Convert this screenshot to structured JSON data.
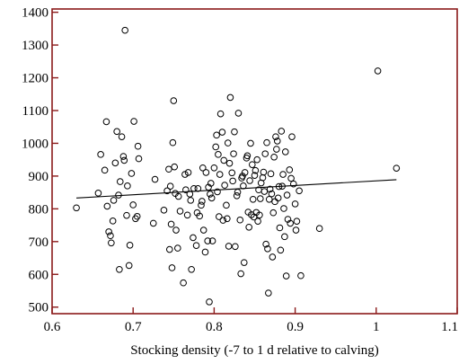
{
  "chart_data": {
    "type": "scatter",
    "title": "",
    "xlabel": "Stocking density (-7 to 1 d relative to calving)",
    "ylabel": "",
    "xlim": [
      0.6,
      1.1
    ],
    "ylim": [
      480,
      1410
    ],
    "xticks": [
      0.6,
      0.7,
      0.8,
      0.9,
      1.0,
      1.1
    ],
    "xtick_labels": [
      "0.6",
      "0.7",
      "0.8",
      "0.9",
      "1",
      "1.1"
    ],
    "yticks": [
      500,
      600,
      700,
      800,
      900,
      1000,
      1100,
      1200,
      1300,
      1400
    ],
    "ytick_labels": [
      "500",
      "600",
      "700",
      "800",
      "900",
      "1000",
      "1100",
      "1200",
      "1300",
      "1400"
    ],
    "grid": false,
    "frame_color": "#8b1a1a",
    "point_color": "#000000",
    "trend_line": {
      "x": [
        0.63,
        1.025
      ],
      "y": [
        833,
        889
      ]
    },
    "points": [
      [
        0.63,
        803
      ],
      [
        0.657,
        848
      ],
      [
        0.66,
        966
      ],
      [
        0.665,
        918
      ],
      [
        0.667,
        1066
      ],
      [
        0.668,
        808
      ],
      [
        0.67,
        730
      ],
      [
        0.672,
        718
      ],
      [
        0.673,
        696
      ],
      [
        0.675,
        763
      ],
      [
        0.676,
        826
      ],
      [
        0.678,
        940
      ],
      [
        0.68,
        1036
      ],
      [
        0.682,
        842
      ],
      [
        0.683,
        615
      ],
      [
        0.684,
        883
      ],
      [
        0.686,
        1020
      ],
      [
        0.688,
        960
      ],
      [
        0.689,
        948
      ],
      [
        0.69,
        1345
      ],
      [
        0.692,
        780
      ],
      [
        0.693,
        870
      ],
      [
        0.695,
        627
      ],
      [
        0.696,
        689
      ],
      [
        0.698,
        908
      ],
      [
        0.7,
        812
      ],
      [
        0.701,
        1067
      ],
      [
        0.703,
        770
      ],
      [
        0.705,
        777
      ],
      [
        0.706,
        991
      ],
      [
        0.707,
        953
      ],
      [
        0.725,
        756
      ],
      [
        0.727,
        890
      ],
      [
        0.738,
        796
      ],
      [
        0.742,
        855
      ],
      [
        0.744,
        921
      ],
      [
        0.745,
        676
      ],
      [
        0.746,
        869
      ],
      [
        0.747,
        753
      ],
      [
        0.748,
        620
      ],
      [
        0.749,
        1002
      ],
      [
        0.75,
        1130
      ],
      [
        0.751,
        928
      ],
      [
        0.752,
        847
      ],
      [
        0.753,
        735
      ],
      [
        0.755,
        680
      ],
      [
        0.756,
        838
      ],
      [
        0.758,
        793
      ],
      [
        0.762,
        574
      ],
      [
        0.764,
        905
      ],
      [
        0.765,
        858
      ],
      [
        0.767,
        781
      ],
      [
        0.768,
        911
      ],
      [
        0.77,
        845
      ],
      [
        0.771,
        826
      ],
      [
        0.772,
        615
      ],
      [
        0.774,
        712
      ],
      [
        0.775,
        862
      ],
      [
        0.778,
        688
      ],
      [
        0.779,
        788
      ],
      [
        0.78,
        862
      ],
      [
        0.782,
        778
      ],
      [
        0.784,
        811
      ],
      [
        0.785,
        823
      ],
      [
        0.786,
        925
      ],
      [
        0.787,
        735
      ],
      [
        0.789,
        668
      ],
      [
        0.79,
        911
      ],
      [
        0.792,
        702
      ],
      [
        0.793,
        866
      ],
      [
        0.794,
        516
      ],
      [
        0.795,
        845
      ],
      [
        0.796,
        878
      ],
      [
        0.797,
        833
      ],
      [
        0.798,
        702
      ],
      [
        0.8,
        925
      ],
      [
        0.802,
        989
      ],
      [
        0.803,
        1025
      ],
      [
        0.804,
        852
      ],
      [
        0.805,
        966
      ],
      [
        0.806,
        776
      ],
      [
        0.807,
        905
      ],
      [
        0.808,
        1090
      ],
      [
        0.81,
        1034
      ],
      [
        0.811,
        765
      ],
      [
        0.812,
        948
      ],
      [
        0.813,
        872
      ],
      [
        0.815,
        811
      ],
      [
        0.816,
        770
      ],
      [
        0.817,
        1001
      ],
      [
        0.818,
        686
      ],
      [
        0.819,
        939
      ],
      [
        0.82,
        1140
      ],
      [
        0.822,
        910
      ],
      [
        0.823,
        885
      ],
      [
        0.824,
        968
      ],
      [
        0.825,
        1035
      ],
      [
        0.826,
        685
      ],
      [
        0.828,
        840
      ],
      [
        0.829,
        851
      ],
      [
        0.83,
        1092
      ],
      [
        0.832,
        766
      ],
      [
        0.833,
        602
      ],
      [
        0.834,
        894
      ],
      [
        0.835,
        900
      ],
      [
        0.836,
        870
      ],
      [
        0.837,
        636
      ],
      [
        0.838,
        911
      ],
      [
        0.84,
        955
      ],
      [
        0.841,
        962
      ],
      [
        0.842,
        790
      ],
      [
        0.843,
        744
      ],
      [
        0.844,
        886
      ],
      [
        0.845,
        1000
      ],
      [
        0.846,
        782
      ],
      [
        0.847,
        935
      ],
      [
        0.848,
        829
      ],
      [
        0.849,
        775
      ],
      [
        0.85,
        902
      ],
      [
        0.851,
        917
      ],
      [
        0.852,
        789
      ],
      [
        0.853,
        950
      ],
      [
        0.854,
        762
      ],
      [
        0.855,
        858
      ],
      [
        0.856,
        781
      ],
      [
        0.857,
        831
      ],
      [
        0.858,
        879
      ],
      [
        0.86,
        895
      ],
      [
        0.861,
        912
      ],
      [
        0.862,
        853
      ],
      [
        0.863,
        968
      ],
      [
        0.864,
        692
      ],
      [
        0.865,
        1002
      ],
      [
        0.866,
        678
      ],
      [
        0.867,
        543
      ],
      [
        0.868,
        829
      ],
      [
        0.869,
        860
      ],
      [
        0.87,
        907
      ],
      [
        0.871,
        846
      ],
      [
        0.872,
        653
      ],
      [
        0.873,
        788
      ],
      [
        0.874,
        958
      ],
      [
        0.875,
        822
      ],
      [
        0.876,
        1020
      ],
      [
        0.877,
        982
      ],
      [
        0.878,
        1007
      ],
      [
        0.879,
        833
      ],
      [
        0.88,
        868
      ],
      [
        0.881,
        742
      ],
      [
        0.882,
        674
      ],
      [
        0.883,
        1037
      ],
      [
        0.884,
        869
      ],
      [
        0.885,
        905
      ],
      [
        0.886,
        801
      ],
      [
        0.887,
        715
      ],
      [
        0.888,
        974
      ],
      [
        0.889,
        595
      ],
      [
        0.89,
        842
      ],
      [
        0.891,
        768
      ],
      [
        0.893,
        919
      ],
      [
        0.894,
        756
      ],
      [
        0.895,
        893
      ],
      [
        0.896,
        1020
      ],
      [
        0.898,
        876
      ],
      [
        0.9,
        815
      ],
      [
        0.901,
        735
      ],
      [
        0.902,
        762
      ],
      [
        0.905,
        855
      ],
      [
        0.907,
        596
      ],
      [
        0.93,
        740
      ],
      [
        1.002,
        1221
      ],
      [
        1.025,
        924
      ]
    ]
  }
}
